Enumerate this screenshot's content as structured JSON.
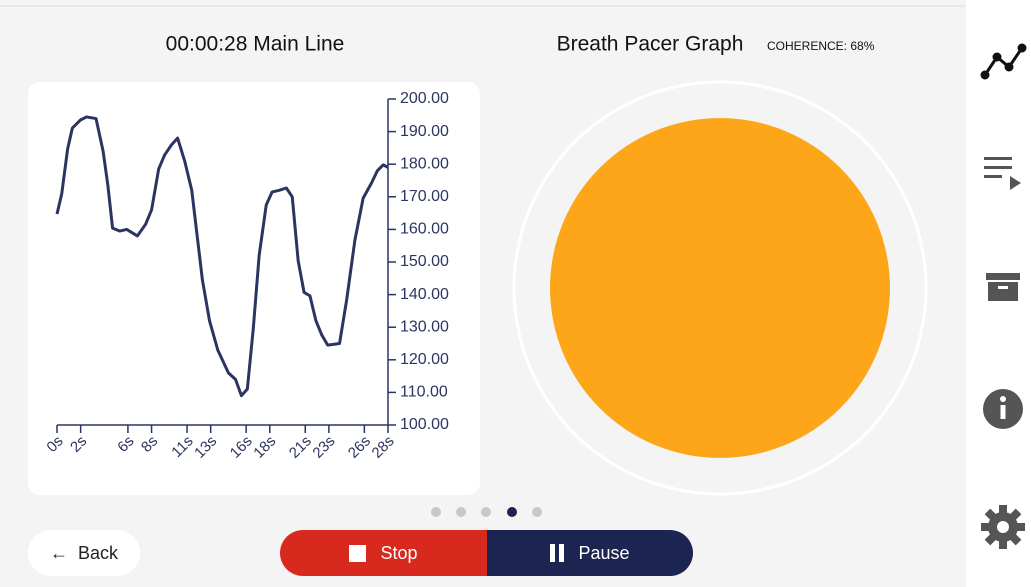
{
  "header": {
    "left_title": "00:00:28 Main Line",
    "right_title": "Breath Pacer Graph",
    "coherence": "COHERENCE: 68%"
  },
  "chart_data": {
    "type": "line",
    "x": [
      0,
      0.4,
      0.9,
      1.3,
      2.0,
      2.5,
      3.3,
      3.9,
      4.3,
      4.7,
      5.3,
      5.9,
      6.8,
      7.5,
      8.0,
      8.6,
      9.1,
      9.7,
      10.2,
      10.8,
      11.4,
      11.9,
      12.3,
      12.9,
      13.6,
      14.5,
      15.1,
      15.6,
      16.1,
      16.6,
      17.1,
      17.7,
      18.2,
      18.8,
      19.4,
      19.9,
      20.4,
      20.9,
      21.4,
      21.9,
      22.4,
      22.9,
      23.9,
      24.5,
      25.2,
      25.9,
      26.6,
      27.1,
      27.6,
      28
    ],
    "series": [
      {
        "color": "#2b3560",
        "values": [
          164.7,
          170.9,
          184.7,
          191.1,
          193.6,
          194.5,
          194.0,
          184.0,
          173.6,
          160.4,
          159.5,
          160.0,
          158.0,
          161.6,
          166.0,
          178.5,
          182.8,
          186.0,
          188.0,
          181.0,
          172.0,
          156.7,
          144.5,
          132.0,
          123.0,
          116.0,
          114.0,
          109.0,
          111.0,
          129.4,
          152.0,
          167.5,
          171.5,
          172.0,
          172.7,
          170.0,
          150.4,
          140.7,
          139.6,
          132.0,
          127.6,
          124.5,
          125.0,
          138.3,
          156.7,
          169.6,
          174.2,
          178.0,
          179.8,
          179.0
        ]
      }
    ],
    "xlim": [
      0,
      28
    ],
    "xticks": [
      {
        "value": 0,
        "label": "0s"
      },
      {
        "value": 2,
        "label": "2s"
      },
      {
        "value": 6,
        "label": "6s"
      },
      {
        "value": 8,
        "label": "8s"
      },
      {
        "value": 11,
        "label": "11s"
      },
      {
        "value": 13,
        "label": "13s"
      },
      {
        "value": 16,
        "label": "16s"
      },
      {
        "value": 18,
        "label": "18s"
      },
      {
        "value": 21,
        "label": "21s"
      },
      {
        "value": 23,
        "label": "23s"
      },
      {
        "value": 26,
        "label": "26s"
      },
      {
        "value": 28,
        "label": "28s"
      }
    ],
    "ylim": [
      100,
      200
    ],
    "yticks": [
      {
        "value": 100,
        "label": "100.00"
      },
      {
        "value": 110,
        "label": "110.00"
      },
      {
        "value": 120,
        "label": "120.00"
      },
      {
        "value": 130,
        "label": "130.00"
      },
      {
        "value": 140,
        "label": "140.00"
      },
      {
        "value": 150,
        "label": "150.00"
      },
      {
        "value": 160,
        "label": "160.00"
      },
      {
        "value": 170,
        "label": "170.00"
      },
      {
        "value": 180,
        "label": "180.00"
      },
      {
        "value": 190,
        "label": "190.00"
      },
      {
        "value": 200,
        "label": "200.00"
      }
    ]
  },
  "buttons": {
    "back": "Back",
    "stop": "Stop",
    "pause": "Pause"
  }
}
